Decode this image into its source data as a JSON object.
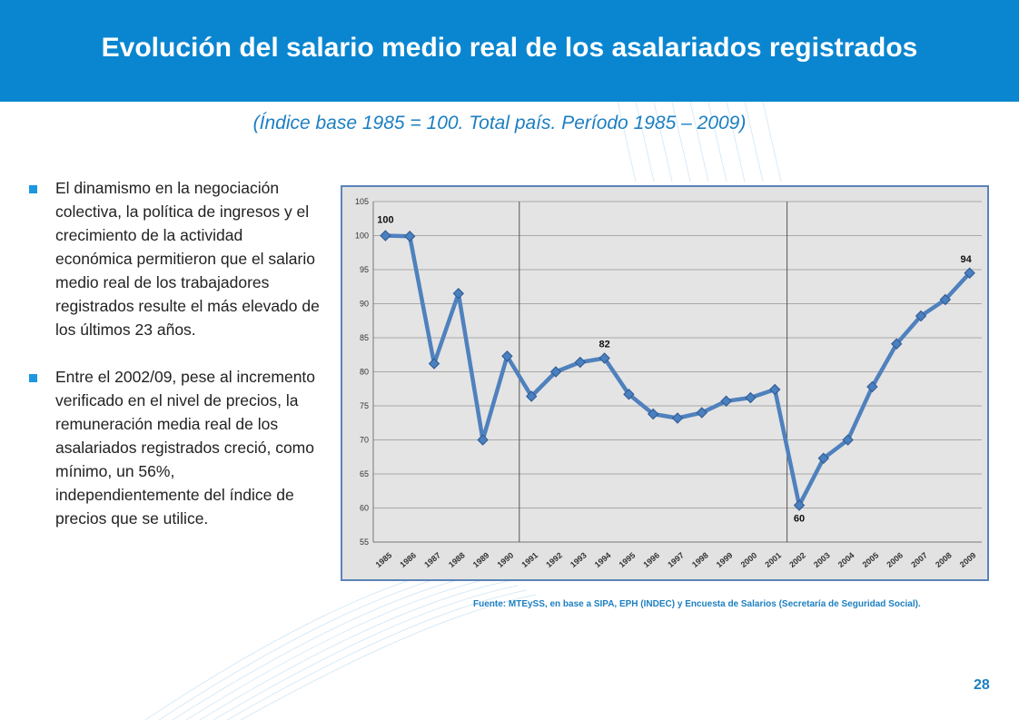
{
  "slide": {
    "title": "Evolución del salario medio real de los asalariados registrados",
    "subtitle": "(Índice base 1985 = 100. Total país. Período 1985 – 2009)",
    "bullets": [
      "El dinamismo en la negociación colectiva, la política de ingresos y el crecimiento de la actividad económica permitieron que el salario medio real de los trabajadores registrados resulte el más elevado de los últimos 23 años.",
      "Entre el 2002/09, pese al incremento verificado en el nivel de precios, la remuneración media real de los asalariados registrados creció, como mínimo, un 56%, independientemente del índice de precios que se utilice."
    ],
    "source": "Fuente: MTEySS, en base a SIPA, EPH (INDEC) y Encuesta de Salarios (Secretaría de Seguridad Social).",
    "page_number": "28",
    "colors": {
      "header": "#0a86d0",
      "subtitle": "#1c7fc1",
      "bullet": "#1d97e0",
      "line": "#4f81bd",
      "chart_background": "#e2e2e2"
    }
  },
  "chart_data": {
    "type": "line",
    "title": "",
    "xlabel": "",
    "ylabel": "",
    "ylim": [
      55,
      105
    ],
    "yticks": [
      55,
      60,
      65,
      70,
      75,
      80,
      85,
      90,
      95,
      100,
      105
    ],
    "grid": true,
    "x": [
      "1985",
      "1986",
      "1987",
      "1988",
      "1989",
      "1990",
      "1991",
      "1992",
      "1993",
      "1994",
      "1995",
      "1996",
      "1997",
      "1998",
      "1999",
      "2000",
      "2001",
      "2002",
      "2003",
      "2004",
      "2005",
      "2006",
      "2007",
      "2008",
      "2009"
    ],
    "series": [
      {
        "values": [
          100,
          99.9,
          81.2,
          91.5,
          70.0,
          82.3,
          76.4,
          80.0,
          81.4,
          82.0,
          76.7,
          73.8,
          73.2,
          74.0,
          75.7,
          76.2,
          77.4,
          60.4,
          67.3,
          70.0,
          77.8,
          84.1,
          88.2,
          90.6,
          94.5
        ]
      }
    ],
    "vertical_markers": [
      "1991",
      "2002"
    ],
    "annotations": [
      {
        "x": "1985",
        "label": "100"
      },
      {
        "x": "1994",
        "label": "82"
      },
      {
        "x": "2002",
        "label": "60"
      },
      {
        "x": "2009",
        "label": "94"
      }
    ]
  }
}
